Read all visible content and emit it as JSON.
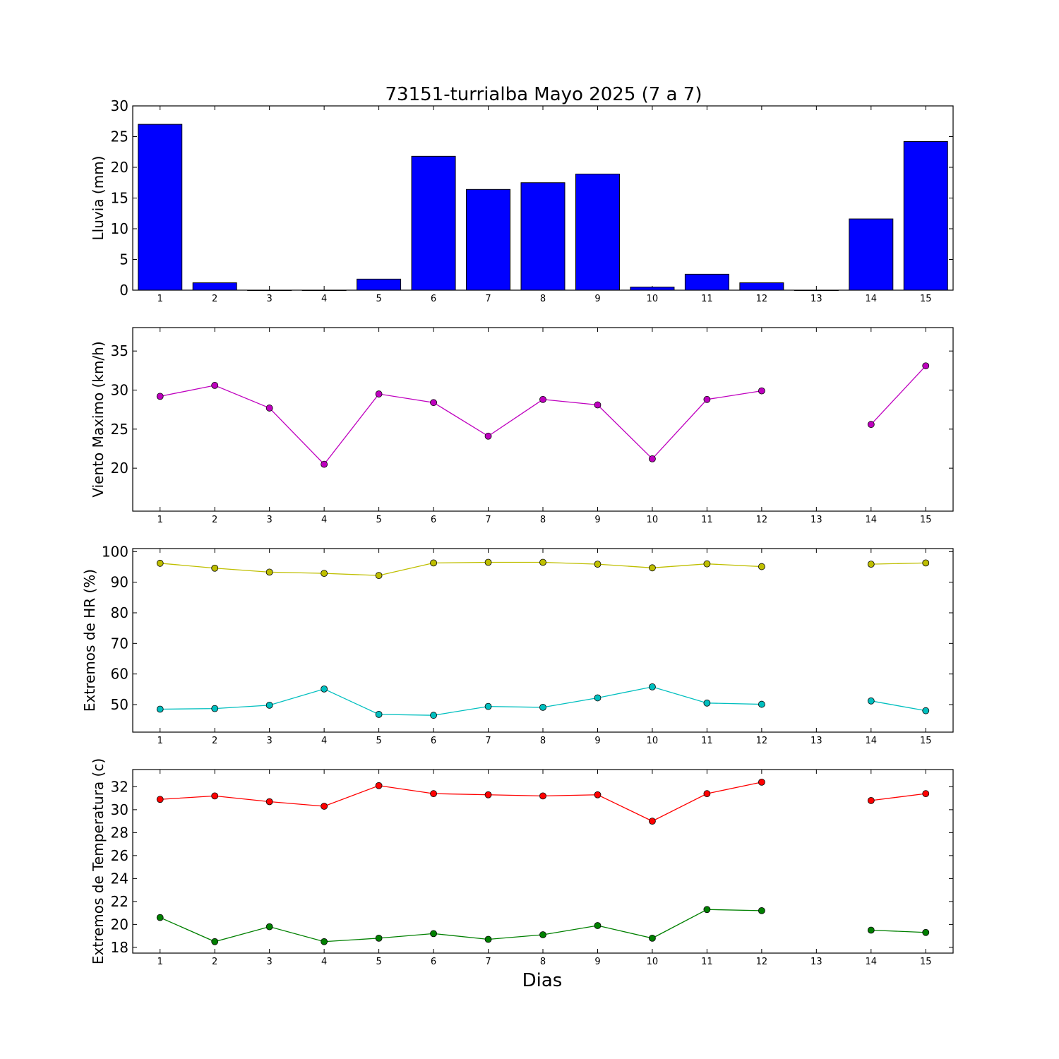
{
  "title": "73151-turrialba Mayo 2025  (7 a 7)",
  "xlabel": "Dias",
  "chart_data": [
    {
      "type": "bar",
      "ylabel": "Lluvia (mm)",
      "ylim": [
        0,
        30
      ],
      "yticks": [
        0,
        5,
        10,
        15,
        20,
        25,
        30
      ],
      "xticks": [
        1,
        2,
        3,
        4,
        5,
        6,
        7,
        8,
        9,
        10,
        11,
        12,
        13,
        14,
        15
      ],
      "color": "#0000ff",
      "series": [
        {
          "values": [
            27.0,
            1.2,
            0.0,
            0.0,
            1.8,
            21.8,
            16.4,
            17.5,
            18.9,
            0.5,
            2.6,
            1.2,
            0.0,
            11.6,
            24.2
          ]
        }
      ]
    },
    {
      "type": "line",
      "ylabel": "Viento Maximo (km/h)",
      "ylim": [
        14.5,
        38
      ],
      "yticks": [
        20,
        25,
        30,
        35
      ],
      "xticks": [
        1,
        2,
        3,
        4,
        5,
        6,
        7,
        8,
        9,
        10,
        11,
        12,
        13,
        14,
        15
      ],
      "series": [
        {
          "color": "#bf00bf",
          "values": [
            29.2,
            30.6,
            27.7,
            20.5,
            29.5,
            28.4,
            24.1,
            28.8,
            28.1,
            21.2,
            28.8,
            29.9,
            null,
            25.6,
            33.1
          ]
        }
      ]
    },
    {
      "type": "line",
      "ylabel": "Extremos de HR (%)",
      "ylim": [
        41,
        101
      ],
      "yticks": [
        50,
        60,
        70,
        80,
        90,
        100
      ],
      "xticks": [
        1,
        2,
        3,
        4,
        5,
        6,
        7,
        8,
        9,
        10,
        11,
        12,
        13,
        14,
        15
      ],
      "series": [
        {
          "color": "#bfbf00",
          "values": [
            96.2,
            94.6,
            93.3,
            92.9,
            92.2,
            96.3,
            96.5,
            96.5,
            95.9,
            94.7,
            96.0,
            95.1,
            null,
            95.9,
            96.3
          ]
        },
        {
          "color": "#00bfbf",
          "values": [
            48.5,
            48.7,
            49.8,
            55.1,
            46.8,
            46.5,
            49.4,
            49.1,
            52.2,
            55.8,
            50.5,
            50.1,
            null,
            51.2,
            48.0
          ]
        }
      ]
    },
    {
      "type": "line",
      "ylabel": "Extremos de Temperatura (c)",
      "ylim": [
        17.5,
        33.5
      ],
      "yticks": [
        18,
        20,
        22,
        24,
        26,
        28,
        30,
        32
      ],
      "xticks": [
        1,
        2,
        3,
        4,
        5,
        6,
        7,
        8,
        9,
        10,
        11,
        12,
        13,
        14,
        15
      ],
      "series": [
        {
          "color": "#ff0000",
          "values": [
            30.9,
            31.2,
            30.7,
            30.3,
            32.1,
            31.4,
            31.3,
            31.2,
            31.3,
            29.0,
            31.4,
            32.4,
            null,
            30.8,
            31.4
          ]
        },
        {
          "color": "#008000",
          "values": [
            20.6,
            18.5,
            19.8,
            18.5,
            18.8,
            19.2,
            18.7,
            19.1,
            19.9,
            18.8,
            21.3,
            21.2,
            null,
            19.5,
            19.3
          ]
        }
      ]
    }
  ]
}
